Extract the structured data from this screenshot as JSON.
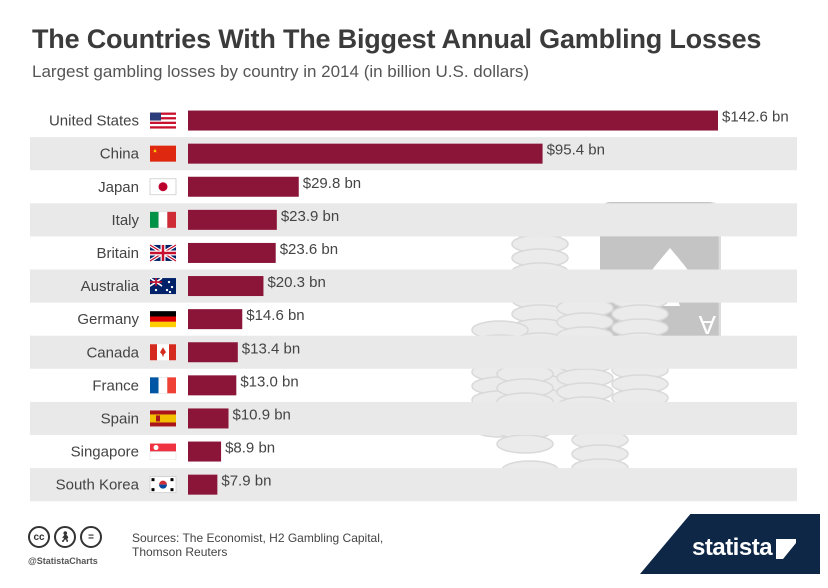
{
  "header": {
    "title": "The Countries With The Biggest Annual Gambling Losses",
    "subtitle": "Largest gambling losses by country in 2014 (in billion U.S. dollars)"
  },
  "chart_data": {
    "type": "bar",
    "orientation": "horizontal",
    "categories": [
      "United States",
      "China",
      "Japan",
      "Italy",
      "Britain",
      "Australia",
      "Germany",
      "Canada",
      "France",
      "Spain",
      "Singapore",
      "South Korea"
    ],
    "values": [
      142.6,
      95.4,
      29.8,
      23.9,
      23.6,
      20.3,
      14.6,
      13.4,
      13.0,
      10.9,
      8.9,
      7.9
    ],
    "value_labels": [
      "$142.6 bn",
      "$95.4 bn",
      "$29.8 bn",
      "$23.9 bn",
      "$23.6 bn",
      "$20.3 bn",
      "$14.6 bn",
      "$13.4 bn",
      "$13.0 bn",
      "$10.9 bn",
      "$8.9 bn",
      "$7.9 bn"
    ],
    "flags": [
      "us-flag",
      "cn-flag",
      "jp-flag",
      "it-flag",
      "gb-flag",
      "au-flag",
      "de-flag",
      "ca-flag",
      "fr-flag",
      "es-flag",
      "sg-flag",
      "kr-flag"
    ],
    "bar_color": "#8b1538",
    "row_stripe_color": "#e9e9e9",
    "title": "The Countries With The Biggest Annual Gambling Losses",
    "xlabel": "",
    "ylabel": "",
    "xlim": [
      0,
      142.6
    ],
    "grid": false,
    "legend": "none"
  },
  "footer": {
    "license_icons": [
      "cc",
      "by",
      "nd"
    ],
    "handle": "@StatistaCharts",
    "sources": "Sources: The Economist, H2 Gambling Capital, Thomson Reuters",
    "brand": "statista"
  },
  "colors": {
    "title": "#3b3b3b",
    "brand_bg": "#0f2747"
  }
}
